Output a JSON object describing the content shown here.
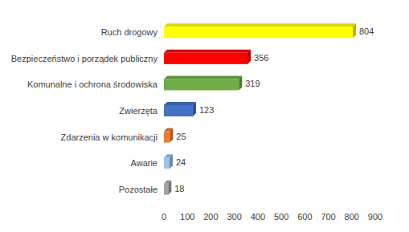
{
  "chart_data": {
    "type": "bar",
    "orientation": "horizontal",
    "categories": [
      "Ruch drogowy",
      "Bezpieczeństwo i porządek publiczny",
      "Komunalne i ochrona środowiska",
      "Zwierzęta",
      "Zdarzenia w komunikacji",
      "Awarie",
      "Pozostałe"
    ],
    "values": [
      804,
      356,
      319,
      123,
      25,
      24,
      18
    ],
    "colors": [
      "#ffff00",
      "#ff0000",
      "#70ad47",
      "#4472c4",
      "#ed7d31",
      "#9dc3e6",
      "#a5a5a5"
    ],
    "xlim": [
      0,
      900
    ],
    "xticks": [
      0,
      100,
      200,
      300,
      400,
      500,
      600,
      700,
      800,
      900
    ],
    "grid": false,
    "data_labels": true
  }
}
